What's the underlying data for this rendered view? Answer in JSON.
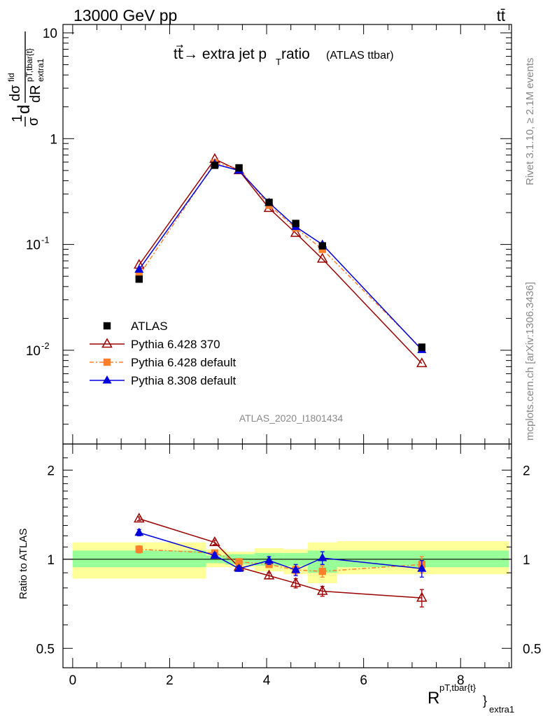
{
  "header": {
    "left": "13000 GeV pp",
    "right": "tt̄"
  },
  "plot": {
    "title_main": "tt⃗→ extra jet p",
    "title_sub": "T",
    "title_tail": " ratio",
    "title_paren": "(ATLAS ttbar)",
    "analysis_id": "ATLAS_2020_I1801434",
    "side_text_top": "Rivet 3.1.10, ≥ 2.1M events",
    "side_text_bottom": "mcplots.cern.ch [arXiv:1306.3436]"
  },
  "chart_data": [
    {
      "type": "scatter",
      "panel": "main",
      "ylabel": "1/σ dσ/dR",
      "yscale": "log",
      "ylim": [
        0.0013,
        12
      ],
      "xlim": [
        -0.2,
        9.05
      ],
      "yticks": [
        "10",
        "1",
        "10^-1",
        "10^-2"
      ],
      "legend_position": "lower-left",
      "series": [
        {
          "name": "ATLAS",
          "color": "#000000",
          "marker": "square",
          "x": [
            1.37,
            2.93,
            3.43,
            4.05,
            4.6,
            5.15,
            7.2
          ],
          "y": [
            0.047,
            0.56,
            0.53,
            0.25,
            0.158,
            0.097,
            0.0107
          ]
        },
        {
          "name": "Pythia 6.428 370",
          "color": "#990000",
          "marker": "open-triangle",
          "x": [
            1.37,
            2.93,
            3.43,
            4.05,
            4.6,
            5.15,
            7.2
          ],
          "y": [
            0.064,
            0.64,
            0.5,
            0.22,
            0.128,
            0.073,
            0.0075
          ]
        },
        {
          "name": "Pythia 6.428 default",
          "color": "#ff7f2a",
          "marker": "square",
          "dash": true,
          "x": [
            1.37,
            2.93,
            3.43,
            4.05,
            4.6,
            5.15,
            7.2
          ],
          "y": [
            0.051,
            0.59,
            0.52,
            0.235,
            0.143,
            0.09,
            0.0103
          ]
        },
        {
          "name": "Pythia 8.308 default",
          "color": "#0000dd",
          "marker": "triangle",
          "x": [
            1.37,
            2.93,
            3.43,
            4.05,
            4.6,
            5.15,
            7.2
          ],
          "y": [
            0.058,
            0.575,
            0.5,
            0.248,
            0.147,
            0.1,
            0.0101
          ]
        }
      ]
    },
    {
      "type": "scatter",
      "panel": "ratio",
      "ylabel": "Ratio to ATLAS",
      "xlabel": "R",
      "xlabel_sup": "pT,tbar{t}",
      "xlabel_sub": "extra1",
      "yscale": "log",
      "ylim": [
        0.43,
        2.45
      ],
      "xlim": [
        -0.2,
        9.05
      ],
      "xticks": [
        "0",
        "2",
        "4",
        "6",
        "8"
      ],
      "yticks": [
        "0.5",
        "1",
        "2"
      ],
      "bands": [
        {
          "x0": 0.0,
          "x1": 2.75,
          "inner": [
            0.94,
            1.07
          ],
          "outer": [
            0.86,
            1.14
          ]
        },
        {
          "x0": 2.75,
          "x1": 3.15,
          "inner": [
            0.97,
            1.03
          ],
          "outer": [
            0.94,
            1.08
          ]
        },
        {
          "x0": 3.15,
          "x1": 3.75,
          "inner": [
            0.96,
            1.04
          ],
          "outer": [
            0.94,
            1.06
          ]
        },
        {
          "x0": 3.75,
          "x1": 4.35,
          "inner": [
            0.95,
            1.05
          ],
          "outer": [
            0.91,
            1.09
          ]
        },
        {
          "x0": 4.35,
          "x1": 4.85,
          "inner": [
            0.95,
            1.05
          ],
          "outer": [
            0.89,
            1.08
          ]
        },
        {
          "x0": 4.85,
          "x1": 5.45,
          "inner": [
            0.9,
            1.07
          ],
          "outer": [
            0.83,
            1.14
          ]
        },
        {
          "x0": 5.45,
          "x1": 9.0,
          "inner": [
            0.94,
            1.07
          ],
          "outer": [
            0.89,
            1.15
          ]
        }
      ],
      "series": [
        {
          "name": "Pythia 6.428 370",
          "x": [
            1.37,
            2.93,
            3.43,
            4.05,
            4.6,
            5.15,
            7.2
          ],
          "y": [
            1.37,
            1.14,
            0.94,
            0.88,
            0.83,
            0.78,
            0.74
          ],
          "err": [
            0.02,
            0.02,
            0.02,
            0.02,
            0.03,
            0.03,
            0.05
          ]
        },
        {
          "name": "Pythia 6.428 default",
          "x": [
            1.37,
            2.93,
            3.43,
            4.05,
            4.6,
            5.15,
            7.2
          ],
          "y": [
            1.08,
            1.05,
            0.98,
            0.96,
            0.92,
            0.91,
            0.96
          ],
          "err": [
            0.03,
            0.02,
            0.02,
            0.02,
            0.03,
            0.04,
            0.06
          ]
        },
        {
          "name": "Pythia 8.308 default",
          "x": [
            1.37,
            2.93,
            3.43,
            4.05,
            4.6,
            5.15,
            7.2
          ],
          "y": [
            1.23,
            1.03,
            0.93,
            0.99,
            0.92,
            1.01,
            0.93
          ],
          "err": [
            0.03,
            0.02,
            0.02,
            0.03,
            0.04,
            0.05,
            0.06
          ]
        }
      ]
    }
  ]
}
